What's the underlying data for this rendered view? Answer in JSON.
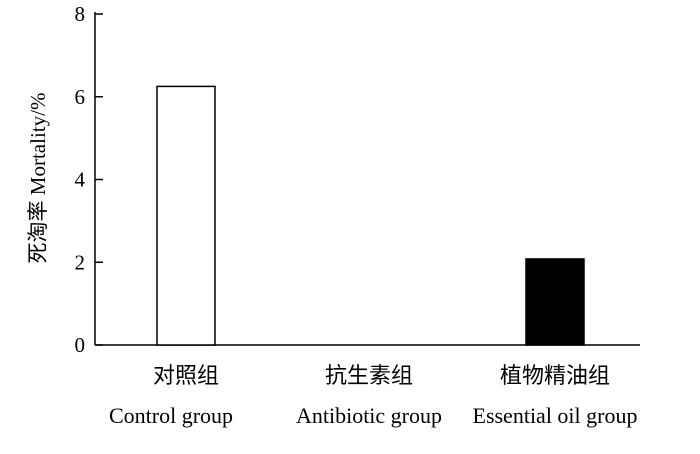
{
  "chart_data": {
    "type": "bar",
    "title": "",
    "categories_cn": [
      "对照组",
      "抗生素组",
      "植物精油组"
    ],
    "categories": [
      "Control group",
      "Antibiotic group",
      "Essential oil group"
    ],
    "values": [
      6.25,
      0,
      2.08
    ],
    "bar_colors": [
      "#ffffff",
      "#ffffff",
      "#000000"
    ],
    "bar_stroke": "#000000",
    "ylabel": "死淘率  Mortality/%",
    "ylim": [
      0,
      8
    ],
    "yticks": [
      0,
      2,
      4,
      6,
      8
    ],
    "grid": false
  }
}
